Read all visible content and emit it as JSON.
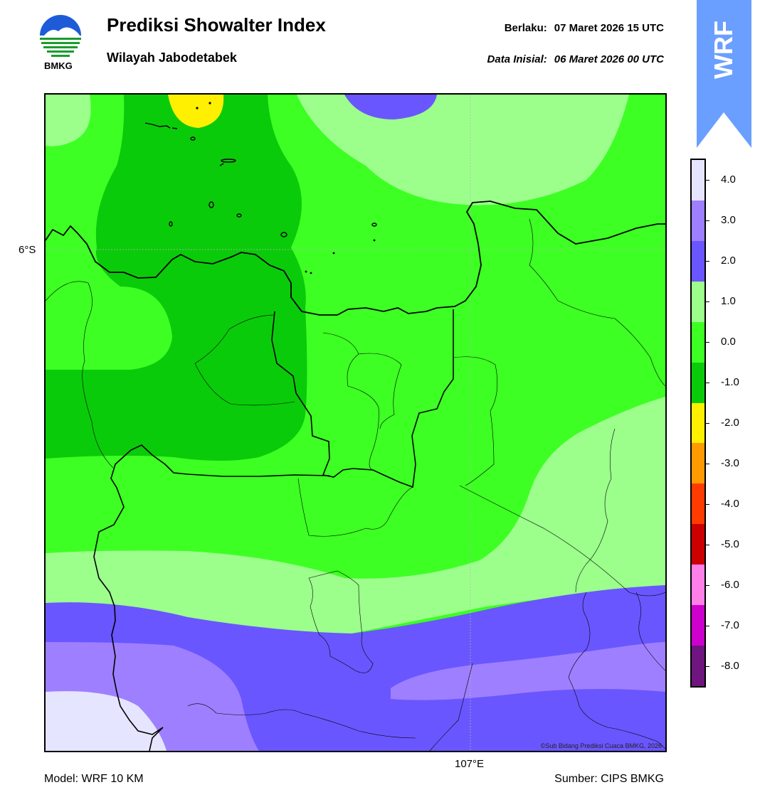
{
  "header": {
    "title": "Prediksi Showalter Index",
    "subtitle": "Wilayah Jabodetabek",
    "valid_label": "Berlaku:",
    "valid_value": "07 Maret 2026 15 UTC",
    "init_label": "Data Inisial:",
    "init_value": "06 Maret 2026 00 UTC"
  },
  "logo": {
    "text": "BMKG",
    "icon": "bmkg-logo-icon"
  },
  "badge": {
    "text": "WRF",
    "color": "#6a9fff",
    "icon": "up-arrow-icon"
  },
  "map": {
    "lat_label": "6°S",
    "lon_label": "107°E",
    "copyright": "©Sub Bidang Prediksi Cuaca BMKG, 2026"
  },
  "footer": {
    "model": "Model: WRF 10 KM",
    "source": "Sumber: CIPS BMKG"
  },
  "colorbar": {
    "colors": [
      "#e5e5ff",
      "#9e7fff",
      "#6a56ff",
      "#9cff8c",
      "#3dff23",
      "#0acb0a",
      "#ffef00",
      "#ff9a00",
      "#ff3c00",
      "#cc0000",
      "#ff7fe9",
      "#cc00cc",
      "#6f157f"
    ],
    "labels": [
      "4.0",
      "3.0",
      "2.0",
      "1.0",
      "0.0",
      "-1.0",
      "-2.0",
      "-3.0",
      "-4.0",
      "-5.0",
      "-6.0",
      "-7.0",
      "-8.0"
    ]
  },
  "legend_colors": {
    "light_green": "#9cff8c",
    "green": "#3dff23",
    "dark_green": "#0acb0a",
    "yellow": "#ffef00",
    "blue": "#6a56ff",
    "purple": "#9e7fff",
    "lavender": "#e5e5ff"
  }
}
